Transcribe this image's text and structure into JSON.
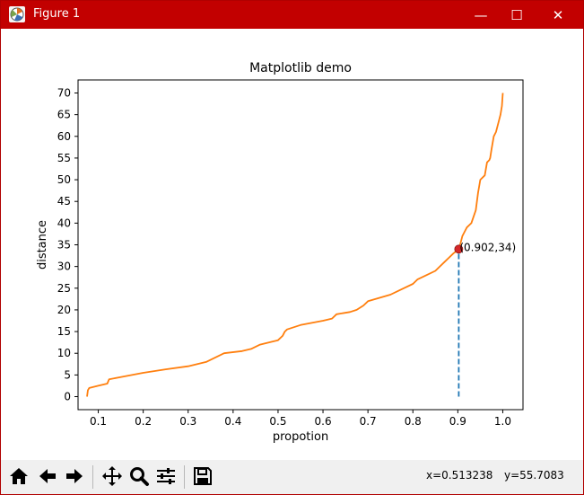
{
  "window": {
    "title": "Figure 1",
    "titlebar_color": "#c20000",
    "min_label": "—",
    "max_label": "☐",
    "close_label": "✕"
  },
  "toolbar": {
    "buttons": [
      "home-icon",
      "back-arrow-icon",
      "forward-arrow-icon",
      "pan-icon",
      "zoom-icon",
      "subplots-config-icon",
      "save-icon"
    ],
    "coord_x": "x=0.513238",
    "coord_y": "y=55.7083"
  },
  "chart_data": {
    "type": "line",
    "title": "Matplotlib demo",
    "xlabel": "propotion",
    "ylabel": "distance",
    "xlim": [
      0.055,
      1.045
    ],
    "ylim": [
      -3,
      73
    ],
    "xticks": [
      0.1,
      0.2,
      0.3,
      0.4,
      0.5,
      0.6,
      0.7,
      0.8,
      0.9,
      1.0
    ],
    "xtick_labels": [
      "0.1",
      "0.2",
      "0.3",
      "0.4",
      "0.5",
      "0.6",
      "0.7",
      "0.8",
      "0.9",
      "1.0"
    ],
    "yticks": [
      0,
      5,
      10,
      15,
      20,
      25,
      30,
      35,
      40,
      45,
      50,
      55,
      60,
      65,
      70
    ],
    "ytick_labels": [
      "0",
      "5",
      "10",
      "15",
      "20",
      "25",
      "30",
      "35",
      "40",
      "45",
      "50",
      "55",
      "60",
      "65",
      "70"
    ],
    "grid": false,
    "series": [
      {
        "color": "#ff7f0e",
        "x": [
          0.075,
          0.077,
          0.08,
          0.1,
          0.12,
          0.122,
          0.124,
          0.15,
          0.2,
          0.25,
          0.3,
          0.34,
          0.36,
          0.38,
          0.42,
          0.44,
          0.46,
          0.5,
          0.51,
          0.515,
          0.52,
          0.55,
          0.6,
          0.62,
          0.63,
          0.66,
          0.675,
          0.69,
          0.7,
          0.75,
          0.77,
          0.78,
          0.8,
          0.81,
          0.83,
          0.85,
          0.86,
          0.87,
          0.88,
          0.89,
          0.902,
          0.905,
          0.91,
          0.915,
          0.92,
          0.93,
          0.94,
          0.945,
          0.95,
          0.96,
          0.965,
          0.97,
          0.972,
          0.975,
          0.98,
          0.985,
          0.99,
          0.995,
          0.998,
          1.0
        ],
        "y": [
          0,
          1.5,
          2,
          2.5,
          3,
          3.5,
          4,
          4.5,
          5.5,
          6.3,
          7,
          8,
          9,
          10,
          10.5,
          11,
          12,
          13,
          14,
          15,
          15.5,
          16.5,
          17.5,
          18,
          19,
          19.5,
          20,
          21,
          22,
          23.5,
          24.5,
          25,
          26,
          27,
          28,
          29,
          30,
          31,
          32,
          33,
          34,
          35,
          37,
          38,
          39,
          40,
          43,
          47,
          50,
          51,
          54,
          54.5,
          55,
          57,
          60,
          61,
          63,
          65,
          67,
          70
        ]
      },
      {
        "style": "dashed",
        "color": "#1f77b4",
        "x": [
          0.902,
          0.902
        ],
        "y": [
          0,
          34
        ]
      }
    ],
    "marker": {
      "x": 0.902,
      "y": 34,
      "color": "#d62728"
    },
    "annotation": {
      "text": "(0.902,34)",
      "x": 0.902,
      "y": 34
    }
  }
}
